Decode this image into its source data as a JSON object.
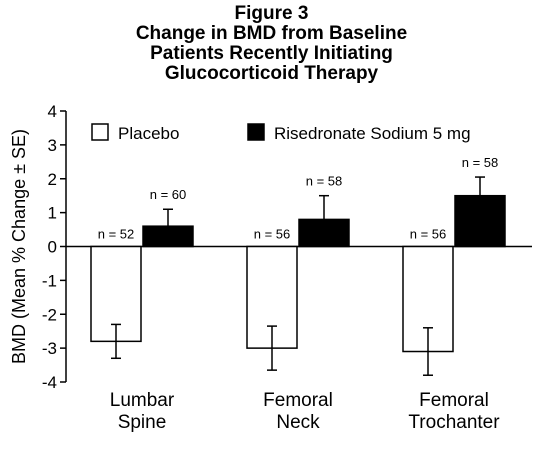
{
  "title_lines": [
    "Figure 3",
    "Change in BMD from Baseline",
    "Patients Recently Initiating",
    "Glucocorticoid Therapy"
  ],
  "chart_data": {
    "type": "bar",
    "categories": [
      [
        "Lumbar",
        "Spine"
      ],
      [
        "Femoral",
        "Neck"
      ],
      [
        "Femoral",
        "Trochanter"
      ]
    ],
    "ylabel": "BMD (Mean % Change ± SE)",
    "xlabel": "",
    "ylim": [
      -4,
      4
    ],
    "yticks": [
      4,
      3,
      2,
      1,
      0,
      -1,
      -2,
      -3,
      -4
    ],
    "grid": false,
    "legend_position": "top",
    "series": [
      {
        "name": "Placebo",
        "fill": "#ffffff",
        "values": [
          -2.8,
          -3.0,
          -3.1
        ],
        "errors": [
          0.5,
          0.65,
          0.7
        ],
        "n_labels": [
          "n = 52",
          "n = 56",
          "n = 56"
        ]
      },
      {
        "name": "Risedronate Sodium 5 mg",
        "fill": "#000000",
        "values": [
          0.6,
          0.8,
          1.5
        ],
        "errors": [
          0.5,
          0.7,
          0.55
        ],
        "n_labels": [
          "n = 60",
          "n = 58",
          "n = 58"
        ]
      }
    ]
  }
}
